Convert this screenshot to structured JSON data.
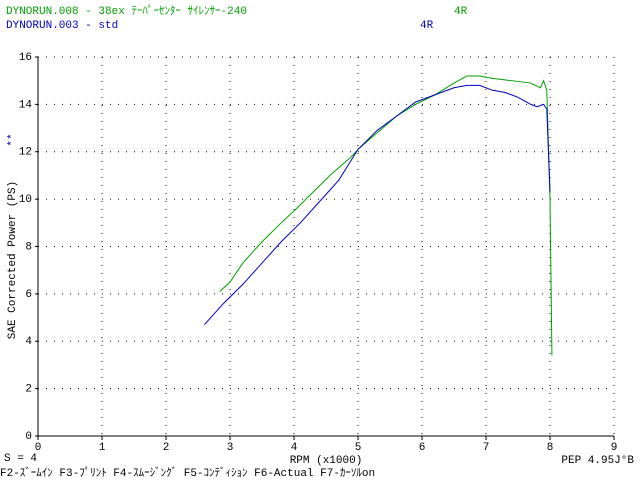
{
  "chart_data": {
    "type": "line",
    "header_lines": [
      {
        "file": "DYNORUN.008 - 38ex ﾃｰﾊﾟｰｾﾝﾀｰ ｻｲﾚﾝｻｰ-240",
        "gear": "4R",
        "color": "#00a000"
      },
      {
        "file": "DYNORUN.003 - std",
        "gear": "4R",
        "color": "#0000c0"
      }
    ],
    "ylabel": "SAE Corrected Power (PS)",
    "marker_label": "**",
    "xlabel": "RPM (x1000)",
    "smoothing": "S = 4",
    "pep": "PEP 4.95J°B",
    "function_keys": "F2-ｽﾞｰﾑｲﾝ F3-ﾌﾟﾘﾝﾄ F4-ｽﾑｰｼﾞﾝｸﾞ F5-ｺﾝﾃﾞｨｼｮﾝ F6-Actual  F7-ｶｰｿﾙon",
    "xlim": [
      0,
      9
    ],
    "xticks": [
      0,
      1,
      2,
      3,
      4,
      5,
      6,
      7,
      8,
      9
    ],
    "ylim": [
      0,
      16
    ],
    "yticks": [
      0,
      2,
      4,
      6,
      8,
      10,
      12,
      14,
      16
    ],
    "grid": true,
    "series": [
      {
        "name": "DYNORUN.008",
        "color": "#00a000",
        "x": [
          2.84,
          3.0,
          3.2,
          3.5,
          3.8,
          4.0,
          4.3,
          4.6,
          4.9,
          5.0,
          5.3,
          5.6,
          5.9,
          6.2,
          6.5,
          6.7,
          6.9,
          7.1,
          7.4,
          7.7,
          7.85,
          7.9,
          7.95,
          8.0,
          8.03
        ],
        "values": [
          6.1,
          6.5,
          7.3,
          8.2,
          9.0,
          9.5,
          10.3,
          11.1,
          11.8,
          12.1,
          12.8,
          13.5,
          14.0,
          14.4,
          14.9,
          15.2,
          15.2,
          15.1,
          15.0,
          14.9,
          14.7,
          15.0,
          14.6,
          10.0,
          3.4
        ]
      },
      {
        "name": "DYNORUN.003",
        "color": "#0000c0",
        "x": [
          2.6,
          2.9,
          3.2,
          3.5,
          3.8,
          4.1,
          4.4,
          4.7,
          5.0,
          5.3,
          5.6,
          5.9,
          6.2,
          6.5,
          6.7,
          6.9,
          7.1,
          7.3,
          7.5,
          7.7,
          7.8,
          7.9,
          7.95,
          8.0
        ],
        "values": [
          4.7,
          5.6,
          6.4,
          7.3,
          8.2,
          9.0,
          9.9,
          10.8,
          12.1,
          12.9,
          13.5,
          14.1,
          14.4,
          14.7,
          14.8,
          14.8,
          14.6,
          14.5,
          14.3,
          14.0,
          13.9,
          14.0,
          13.8,
          10.3
        ]
      }
    ]
  }
}
